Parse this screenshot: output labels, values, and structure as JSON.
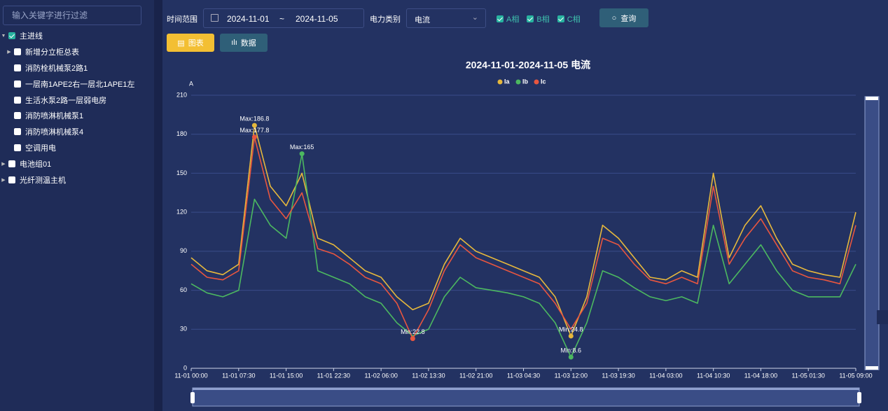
{
  "sidebar": {
    "filter_placeholder": "输入关键字进行过滤",
    "tree": [
      {
        "label": "主进线",
        "level": 0,
        "expanded": true,
        "checked": true
      },
      {
        "label": "新增分立柜总表",
        "level": 1,
        "expandable": true,
        "checked": false
      },
      {
        "label": "消防栓机械泵2路1",
        "level": 1,
        "checked": false
      },
      {
        "label": "一层南1APE2右一层北1APE1左",
        "level": 1,
        "checked": false
      },
      {
        "label": "生活水泵2路一层弱电房",
        "level": 1,
        "checked": false
      },
      {
        "label": "消防喷淋机械泵1",
        "level": 1,
        "checked": false
      },
      {
        "label": "消防喷淋机械泵4",
        "level": 1,
        "checked": false
      },
      {
        "label": "空调用电",
        "level": 1,
        "checked": false
      },
      {
        "label": "电池组01",
        "level": 0,
        "expandable": true,
        "checked": false
      },
      {
        "label": "光纤测温主机",
        "level": 0,
        "expandable": true,
        "checked": false
      }
    ]
  },
  "toolbar": {
    "time_label": "时间范围",
    "start_date": "2024-11-01",
    "separator": "~",
    "end_date": "2024-11-05",
    "category_label": "电力类别",
    "category_value": "电流",
    "phases": [
      "A相",
      "B相",
      "C相"
    ],
    "query_button": "查询",
    "tabs": [
      "图表",
      "数据"
    ]
  },
  "chart_data": {
    "type": "line",
    "title": "2024-11-01-2024-11-05  电流",
    "y_axis_label": "A",
    "categories": [
      "11-01 00:00",
      null,
      null,
      "11-01 07:30",
      null,
      null,
      "11-01 15:00",
      null,
      null,
      "11-01 22:30",
      null,
      null,
      "11-02 06:00",
      null,
      null,
      "11-02 13:30",
      null,
      null,
      "11-02 21:00",
      null,
      null,
      "11-03 04:30",
      null,
      null,
      "11-03 12:00",
      null,
      null,
      "11-03 19:30",
      null,
      null,
      "11-04 03:00",
      null,
      null,
      "11-04 10:30",
      null,
      null,
      "11-04 18:00",
      null,
      null,
      "11-05 01:30",
      null,
      null,
      "11-05 09:00"
    ],
    "ylim": [
      0,
      210
    ],
    "yticks": [
      0,
      30,
      60,
      90,
      120,
      150,
      180,
      210
    ],
    "grid": true,
    "legend": "top",
    "series": [
      {
        "name": "Ia",
        "color": "#e6b83c",
        "values": [
          85,
          75,
          72,
          80,
          186.8,
          140,
          125,
          150,
          100,
          95,
          85,
          75,
          70,
          55,
          45,
          50,
          80,
          100,
          90,
          85,
          80,
          75,
          70,
          55,
          24.8,
          55,
          110,
          100,
          85,
          70,
          68,
          75,
          70,
          150,
          85,
          110,
          125,
          100,
          80,
          75,
          72,
          70,
          120
        ],
        "mark_points": [
          {
            "label": "Max:186.8",
            "value": 186.8,
            "index": 4
          },
          {
            "label": "Min:24.8",
            "value": 24.8,
            "index": 24
          }
        ]
      },
      {
        "name": "Ib",
        "color": "#4cb860",
        "values": [
          65,
          58,
          55,
          60,
          130,
          110,
          100,
          165,
          75,
          70,
          65,
          55,
          50,
          35,
          25,
          30,
          55,
          70,
          62,
          60,
          58,
          55,
          50,
          35,
          8.6,
          35,
          75,
          70,
          62,
          55,
          52,
          55,
          50,
          110,
          65,
          80,
          95,
          75,
          60,
          55,
          55,
          55,
          80
        ],
        "mark_points": [
          {
            "label": "Max:165",
            "value": 165,
            "index": 7
          },
          {
            "label": "Min:8.6",
            "value": 8.6,
            "index": 24
          }
        ]
      },
      {
        "name": "Ic",
        "color": "#e8563f",
        "values": [
          80,
          70,
          68,
          75,
          177.8,
          130,
          115,
          135,
          92,
          88,
          80,
          70,
          65,
          50,
          22.8,
          45,
          75,
          95,
          85,
          80,
          75,
          70,
          65,
          50,
          30,
          50,
          100,
          95,
          80,
          68,
          65,
          70,
          65,
          140,
          80,
          100,
          115,
          95,
          75,
          70,
          68,
          65,
          110
        ],
        "mark_points": [
          {
            "label": "Max:177.8",
            "value": 177.8,
            "index": 4
          },
          {
            "label": "Min:22.8",
            "value": 22.8,
            "index": 14
          }
        ]
      }
    ]
  }
}
